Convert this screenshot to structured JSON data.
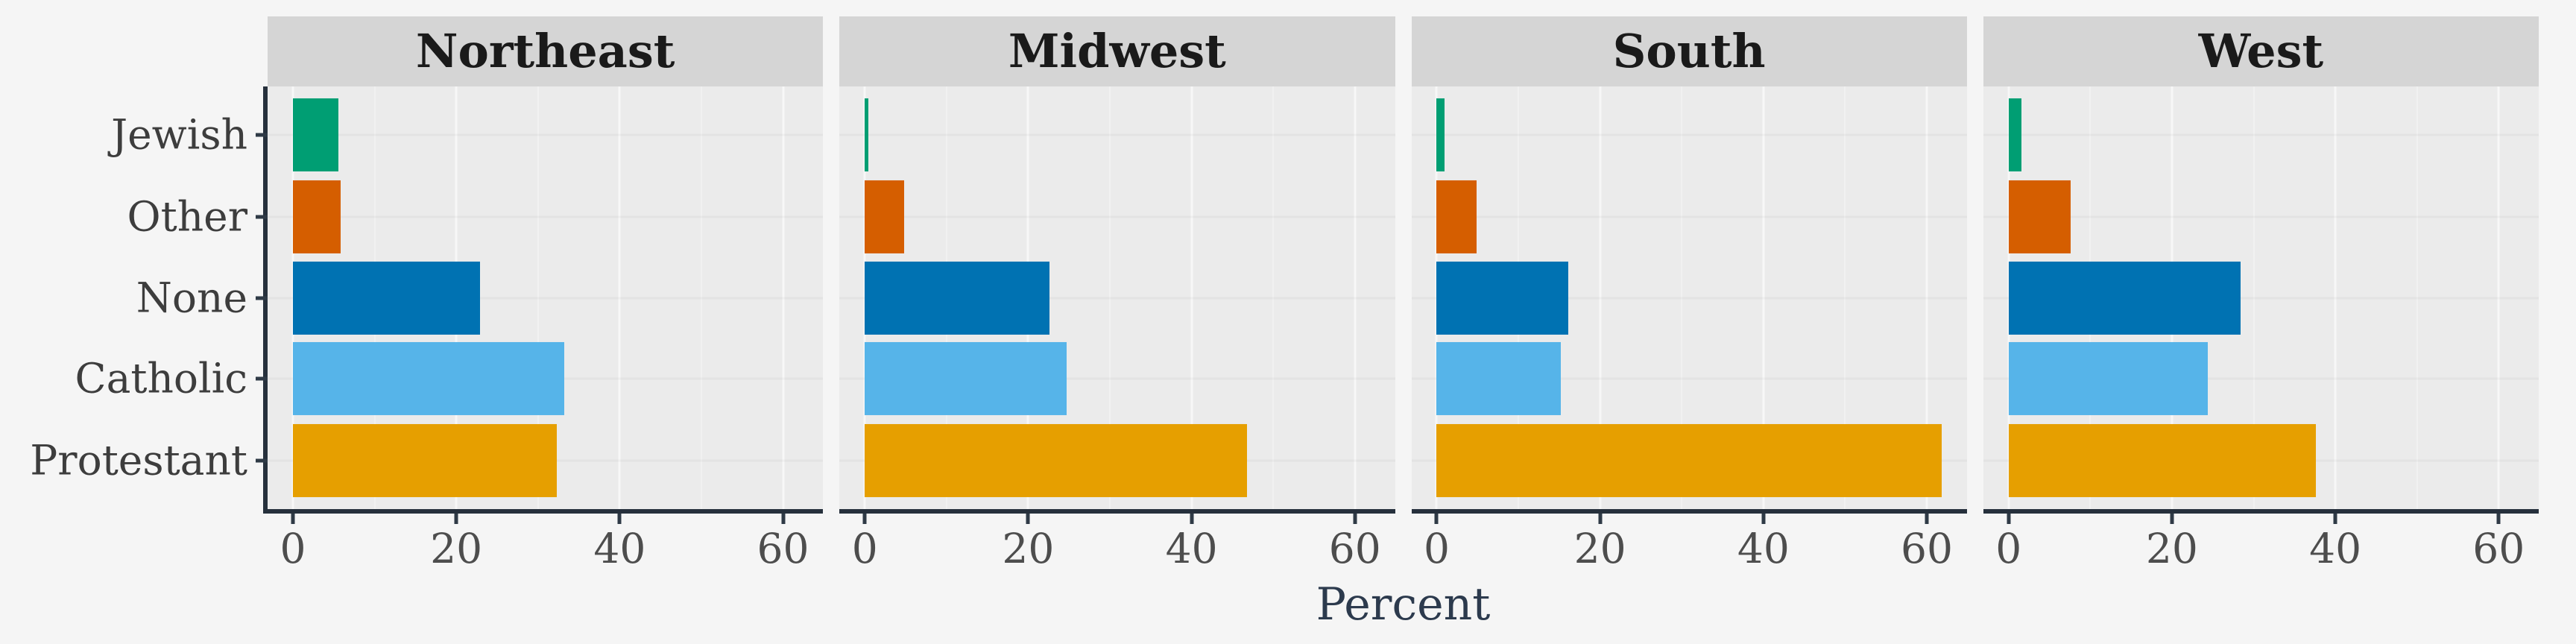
{
  "figure": {
    "outer_background": "#F5F5F5",
    "panel_background": "#EBEBEB",
    "strip_background": "#D5D5D5",
    "strip_text_color": "#1A1A1A",
    "axis_line_color": "#26303C",
    "tick_mark_color": "#2F3A46",
    "tick_label_color": "#4D4D4D",
    "category_label_color": "#3D3D3D",
    "axis_title_color": "#2C3A4D"
  },
  "chart_data": {
    "type": "bar",
    "orientation": "horizontal",
    "title": "",
    "xlabel": "Percent",
    "ylabel": "",
    "x_ticks": [
      0,
      20,
      40,
      60
    ],
    "x_minor_ticks": [
      10,
      30,
      50
    ],
    "xlim": [
      -3.1,
      64.9
    ],
    "grid": "subtle major gridlines on gray panels",
    "legend": "none",
    "categories_top_to_bottom": [
      "Jewish",
      "Other",
      "None",
      "Catholic",
      "Protestant"
    ],
    "colors": {
      "Jewish": "#009E73",
      "Other": "#D55E00",
      "None": "#0072B2",
      "Catholic": "#56B4E9",
      "Protestant": "#E69F00"
    },
    "facets": [
      {
        "label": "Northeast",
        "values": {
          "Jewish": 5.6,
          "Other": 5.8,
          "None": 22.9,
          "Catholic": 33.2,
          "Protestant": 32.3
        }
      },
      {
        "label": "Midwest",
        "values": {
          "Jewish": 0.4,
          "Other": 4.8,
          "None": 22.6,
          "Catholic": 24.7,
          "Protestant": 46.8
        }
      },
      {
        "label": "South",
        "values": {
          "Jewish": 1.0,
          "Other": 4.9,
          "None": 16.1,
          "Catholic": 15.2,
          "Protestant": 61.8
        }
      },
      {
        "label": "West",
        "values": {
          "Jewish": 1.6,
          "Other": 7.6,
          "None": 28.4,
          "Catholic": 24.4,
          "Protestant": 37.6
        }
      }
    ]
  }
}
